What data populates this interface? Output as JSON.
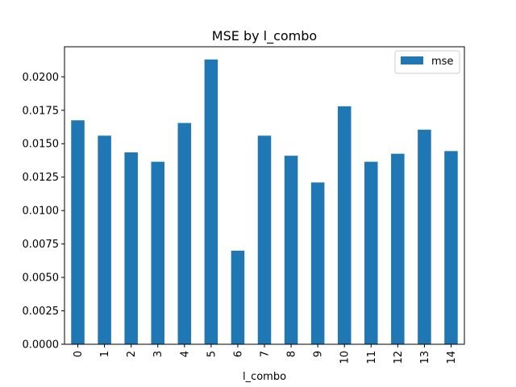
{
  "chart_data": {
    "type": "bar",
    "title": "MSE by l_combo",
    "xlabel": "l_combo",
    "ylabel": "",
    "categories": [
      "0",
      "1",
      "2",
      "3",
      "4",
      "5",
      "6",
      "7",
      "8",
      "9",
      "10",
      "11",
      "12",
      "13",
      "14"
    ],
    "series": [
      {
        "name": "mse",
        "color": "#1f77b4",
        "values": [
          0.01675,
          0.0156,
          0.01435,
          0.01365,
          0.01655,
          0.0213,
          0.007,
          0.0156,
          0.0141,
          0.0121,
          0.0178,
          0.01365,
          0.01425,
          0.01605,
          0.01445
        ]
      }
    ],
    "ylim": [
      0,
      0.02225
    ],
    "yticks": [
      0.0,
      0.0025,
      0.005,
      0.0075,
      0.01,
      0.0125,
      0.015,
      0.0175,
      0.02
    ],
    "ytick_labels": [
      "0.0000",
      "0.0025",
      "0.0050",
      "0.0075",
      "0.0100",
      "0.0125",
      "0.0150",
      "0.0175",
      "0.0200"
    ],
    "grid": false,
    "legend_position": "top-right"
  }
}
